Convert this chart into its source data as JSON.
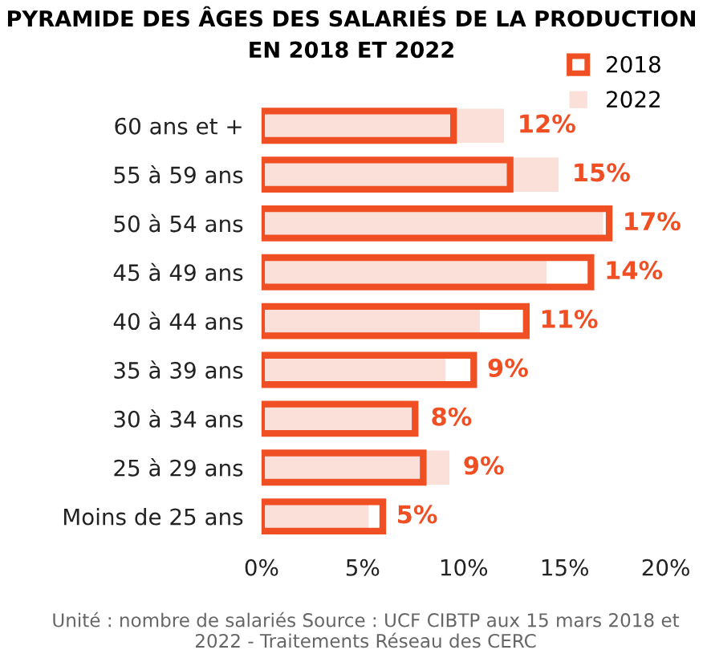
{
  "chart_data": {
    "type": "bar",
    "orientation": "horizontal",
    "title": "PYRAMIDE DES ÂGES DES SALARIÉS DE LA PRODUCTION\nEN 2018 ET 2022",
    "categories": [
      "60 ans et +",
      "55 à 59 ans",
      "50 à 54 ans",
      "45 à 49 ans",
      "40 à 44 ans",
      "35 à 39 ans",
      "30 à 34 ans",
      "25 à 29 ans",
      "Moins de 25 ans"
    ],
    "series": [
      {
        "name": "2022",
        "color": "#fbe0da",
        "values": [
          12.0,
          14.7,
          16.9,
          14.1,
          10.8,
          9.1,
          7.7,
          9.3,
          5.3
        ],
        "value_labels": [
          "12%",
          "15%",
          "17%",
          "14%",
          "11%",
          "9%",
          "8%",
          "9%",
          "5%"
        ]
      },
      {
        "name": "2018",
        "color": "#f04e23",
        "values": [
          9.5,
          12.3,
          17.2,
          16.3,
          13.1,
          10.5,
          7.6,
          8.0,
          6.0
        ]
      }
    ],
    "xlim": [
      0,
      20
    ],
    "xticks": [
      {
        "value": 0,
        "label": "0%"
      },
      {
        "value": 5,
        "label": "5%"
      },
      {
        "value": 10,
        "label": "10%"
      },
      {
        "value": 15,
        "label": "15%"
      },
      {
        "value": 20,
        "label": "20%"
      }
    ],
    "grid": false,
    "legend": "top right",
    "annotations": [
      "Unité : nombre de salariés Source : UCF CIBTP aux 15 mars 2018 et 2022 - Traitements Réseau des CERC"
    ]
  }
}
